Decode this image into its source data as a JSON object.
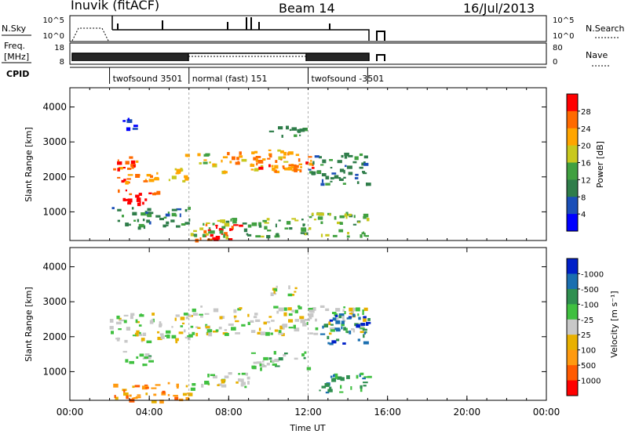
{
  "header": {
    "station": "Inuvik (fitACF)",
    "beam": "Beam 14",
    "date": "16/Jul/2013"
  },
  "panel_nsky": {
    "left_label": "N.Sky",
    "left_ticks": [
      "10^5",
      "10^0"
    ],
    "right_ticks": [
      "10^5",
      "10^0"
    ],
    "right_label": "N.Search"
  },
  "panel_freq": {
    "left_label_1": "Freq.",
    "left_label_2": "[MHz]",
    "left_ticks": [
      "18",
      "8"
    ],
    "right_ticks": [
      "80",
      "0"
    ],
    "right_label": "Nave"
  },
  "cpid": {
    "label": "CPID",
    "segments": [
      {
        "name": "twofsound 3501",
        "start_h": 2.0,
        "end_h": 6.0
      },
      {
        "name": "normal (fast) 151",
        "start_h": 6.0,
        "end_h": 12.0
      },
      {
        "name": "twofsound -3501",
        "start_h": 12.0,
        "end_h": 15.0
      }
    ]
  },
  "colors": {
    "power": [
      "#0000ff",
      "#1b4fb8",
      "#2f7d4a",
      "#40a040",
      "#c8c81e",
      "#ffa500",
      "#ff6a00",
      "#ff0000"
    ],
    "velocity": [
      "#ff0000",
      "#ff5a00",
      "#ff9a10",
      "#e8b000",
      "#c8c8c8",
      "#40c040",
      "#2f8f50",
      "#1b6fb0",
      "#0020c8"
    ]
  },
  "chart_data": [
    {
      "type": "heatmap",
      "name": "power",
      "xlabel": "",
      "ylabel": "Slant Range [km]",
      "xlim": [
        0,
        24
      ],
      "ylim": [
        180,
        4550
      ],
      "y_ticks": [
        1000,
        2000,
        3000,
        4000
      ],
      "colorbar": {
        "label": "Power [dB]",
        "ticks": [
          "4",
          "8",
          "12",
          "16",
          "20",
          "24",
          "28"
        ],
        "range": [
          0,
          32
        ]
      },
      "regions": [
        {
          "t0": 2.0,
          "t1": 3.6,
          "r0": 1850,
          "r1": 2600,
          "level": 6
        },
        {
          "t0": 2.2,
          "t1": 4.4,
          "r0": 1250,
          "r1": 1700,
          "level": 7
        },
        {
          "t0": 3.6,
          "t1": 5.8,
          "r0": 1900,
          "r1": 2350,
          "level": 5
        },
        {
          "t0": 5.8,
          "t1": 7.2,
          "r0": 2300,
          "r1": 2700,
          "level": 4
        },
        {
          "t0": 6.2,
          "t1": 8.6,
          "r0": 180,
          "r1": 700,
          "level": 7
        },
        {
          "t0": 7.6,
          "t1": 11.6,
          "r0": 2150,
          "r1": 2800,
          "level": 5
        },
        {
          "t0": 9.0,
          "t1": 12.4,
          "r0": 2200,
          "r1": 2600,
          "level": 6
        },
        {
          "t0": 12.0,
          "t1": 15.0,
          "r0": 1800,
          "r1": 2700,
          "level": 2
        },
        {
          "t0": 12.0,
          "t1": 15.0,
          "r0": 300,
          "r1": 1000,
          "level": 3
        },
        {
          "t0": 2.1,
          "t1": 6.0,
          "r0": 550,
          "r1": 1150,
          "level": 2
        },
        {
          "t0": 6.0,
          "t1": 12.0,
          "r0": 300,
          "r1": 850,
          "level": 3
        },
        {
          "t0": 10.0,
          "t1": 12.0,
          "r0": 3150,
          "r1": 3500,
          "level": 2
        },
        {
          "t0": 2.1,
          "t1": 3.4,
          "r0": 3400,
          "r1": 3700,
          "level": 1
        }
      ]
    },
    {
      "type": "heatmap",
      "name": "velocity",
      "xlabel": "Time UT",
      "ylabel": "Slant Range [km]",
      "xlim": [
        0,
        24
      ],
      "ylim": [
        180,
        4550
      ],
      "x_ticks": [
        "00:00",
        "04:00",
        "08:00",
        "12:00",
        "16:00",
        "20:00",
        "00:00"
      ],
      "y_ticks": [
        1000,
        2000,
        3000,
        4000
      ],
      "colorbar": {
        "label": "Velocity [m s⁻¹]",
        "ticks": [
          "1000",
          "500",
          "100",
          "25",
          "-25",
          "-100",
          "-500",
          "-1000"
        ],
        "range": [
          -1500,
          1500
        ]
      },
      "regions": [
        {
          "t0": 2.0,
          "t1": 6.0,
          "r0": 1850,
          "r1": 2700,
          "level": 4
        },
        {
          "t0": 6.0,
          "t1": 15.0,
          "r0": 2100,
          "r1": 2900,
          "level": 4
        },
        {
          "t0": 2.6,
          "t1": 4.0,
          "r0": 1200,
          "r1": 1700,
          "level": 5
        },
        {
          "t0": 12.4,
          "t1": 15.0,
          "r0": 400,
          "r1": 1000,
          "level": 6
        },
        {
          "t0": 12.6,
          "t1": 15.0,
          "r0": 1800,
          "r1": 2700,
          "level": 7
        },
        {
          "t0": 2.0,
          "t1": 6.0,
          "r0": 180,
          "r1": 700,
          "level": 2
        },
        {
          "t0": 6.0,
          "t1": 9.0,
          "r0": 500,
          "r1": 1000,
          "level": 4
        },
        {
          "t0": 9.0,
          "t1": 12.0,
          "r0": 1100,
          "r1": 1600,
          "level": 5
        },
        {
          "t0": 10.0,
          "t1": 12.0,
          "r0": 3200,
          "r1": 3500,
          "level": 4
        }
      ]
    }
  ]
}
